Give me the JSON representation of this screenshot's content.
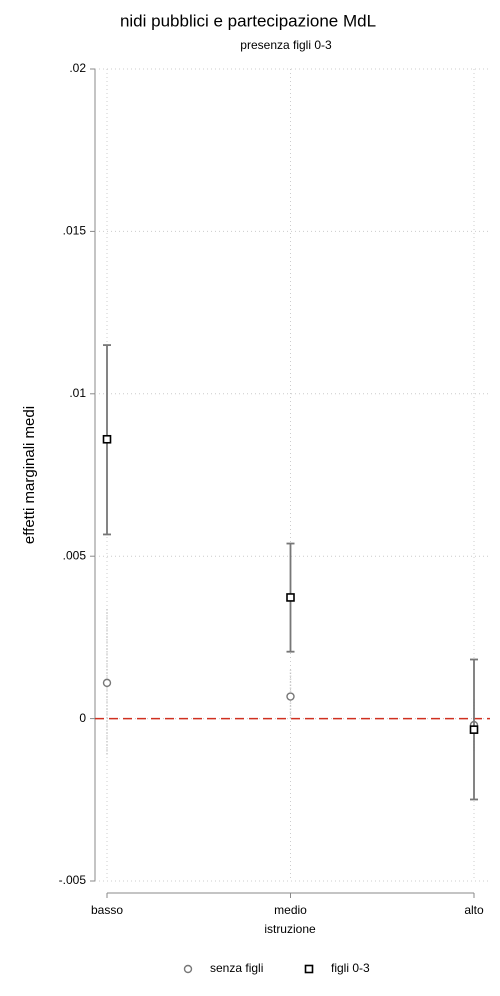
{
  "chart_data": {
    "type": "errorbar",
    "title": "nidi pubblici e partecipazione MdL",
    "subtitle": "presenza  figli 0-3",
    "y_label": "effetti marginali medi",
    "x_label": "istruzione",
    "categories": [
      "basso",
      "medio",
      "alto"
    ],
    "series": [
      {
        "name": "senza figli",
        "color": "#777777",
        "marker": "circle",
        "values": [
          0.0011,
          0.00068,
          -0.0002
        ],
        "lower": [
          -0.0011,
          0.0,
          -0.001
        ],
        "upper": [
          0.0034,
          0.0015,
          0.00065
        ]
      },
      {
        "name": "figli 0-3",
        "color": "#000000",
        "marker": "square",
        "values": [
          0.0086,
          0.00373,
          -0.00034
        ],
        "lower": [
          0.00567,
          0.00206,
          -0.00249
        ],
        "upper": [
          0.0115,
          0.00539,
          0.00182
        ]
      }
    ],
    "ylim": [
      -0.005,
      0.02
    ],
    "yticks": [
      {
        "value": -0.005,
        "label": "-.005"
      },
      0,
      {
        "value": 0.005,
        "label": ".005"
      },
      {
        "value": 0.01,
        "label": ".01"
      },
      {
        "value": 0.015,
        "label": ".015"
      },
      {
        "value": 0.02,
        "label": ".02"
      }
    ],
    "hline": 0,
    "hline_color": "#d03020",
    "grid": true
  }
}
